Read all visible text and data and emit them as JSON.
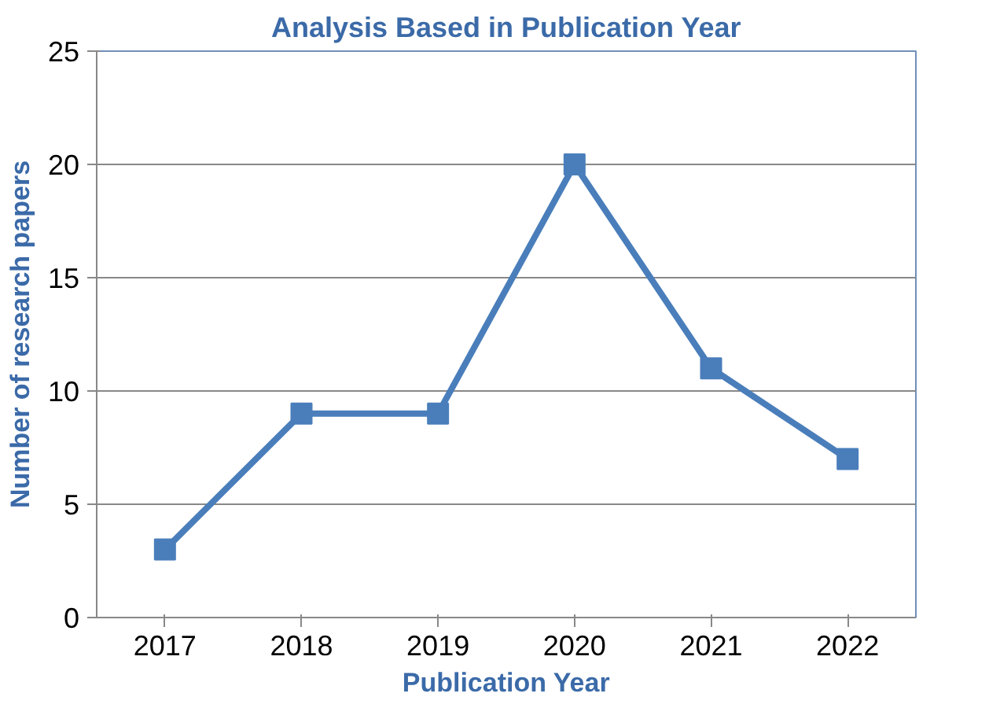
{
  "chart_data": {
    "type": "line",
    "title": "Analysis Based in Publication Year",
    "xlabel": "Publication Year",
    "ylabel": "Number of research papers",
    "categories": [
      "2017",
      "2018",
      "2019",
      "2020",
      "2021",
      "2022"
    ],
    "series": [
      {
        "color": "#4a7ebb",
        "values": [
          3,
          9,
          9,
          20,
          11,
          7
        ]
      }
    ],
    "ylim": [
      0,
      25
    ],
    "yticks": [
      0,
      5,
      10,
      15,
      20,
      25
    ],
    "grid": "y",
    "marker": "square",
    "line_style": "solid"
  }
}
